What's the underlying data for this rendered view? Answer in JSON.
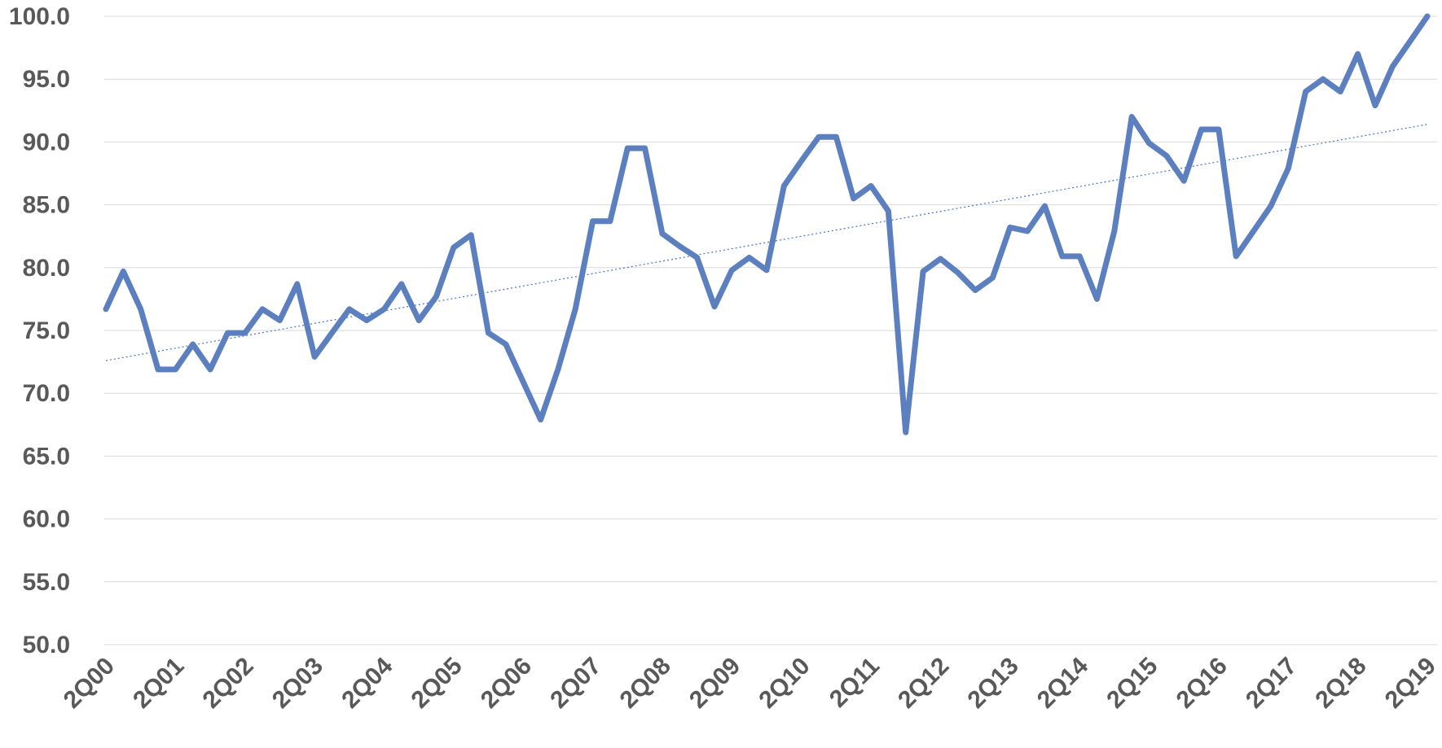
{
  "chart_data": {
    "type": "line",
    "title": "",
    "xlabel": "",
    "ylabel": "",
    "ylim": [
      50,
      100
    ],
    "y_ticks": [
      "50.0",
      "55.0",
      "60.0",
      "65.0",
      "70.0",
      "75.0",
      "80.0",
      "85.0",
      "90.0",
      "95.0",
      "100.0"
    ],
    "x_tick_labels": [
      "2Q00",
      "2Q01",
      "2Q02",
      "2Q03",
      "2Q04",
      "2Q05",
      "2Q06",
      "2Q07",
      "2Q08",
      "2Q09",
      "2Q10",
      "2Q11",
      "2Q12",
      "2Q13",
      "2Q14",
      "2Q15",
      "2Q16",
      "2Q17",
      "2Q18",
      "2Q19"
    ],
    "grid": true,
    "legend": "none",
    "series": [
      {
        "color": "#5b7fbf",
        "values": [
          76.7,
          79.7,
          76.7,
          71.9,
          71.9,
          73.9,
          71.9,
          74.8,
          74.8,
          76.7,
          75.8,
          78.7,
          72.9,
          74.8,
          76.7,
          75.8,
          76.7,
          78.7,
          75.8,
          77.7,
          81.6,
          82.6,
          74.8,
          73.9,
          70.9,
          67.9,
          71.9,
          76.7,
          83.7,
          83.7,
          89.5,
          89.5,
          82.7,
          81.7,
          80.8,
          76.9,
          79.8,
          80.8,
          79.8,
          86.5,
          88.5,
          90.4,
          90.4,
          85.5,
          86.5,
          84.5,
          66.9,
          79.7,
          80.7,
          79.6,
          78.2,
          79.2,
          83.2,
          82.9,
          84.9,
          80.9,
          80.9,
          77.5,
          82.9,
          92.0,
          89.9,
          88.9,
          86.9,
          91.0,
          91.0,
          80.9,
          82.9,
          84.9,
          87.9,
          94.0,
          95.0,
          94.0,
          97.0,
          92.9,
          96.0,
          98.0,
          100.0
        ]
      },
      {
        "type": "trendline",
        "style": "dotted",
        "color": "#4472c4",
        "start": 72.6,
        "end": 91.4
      }
    ]
  }
}
